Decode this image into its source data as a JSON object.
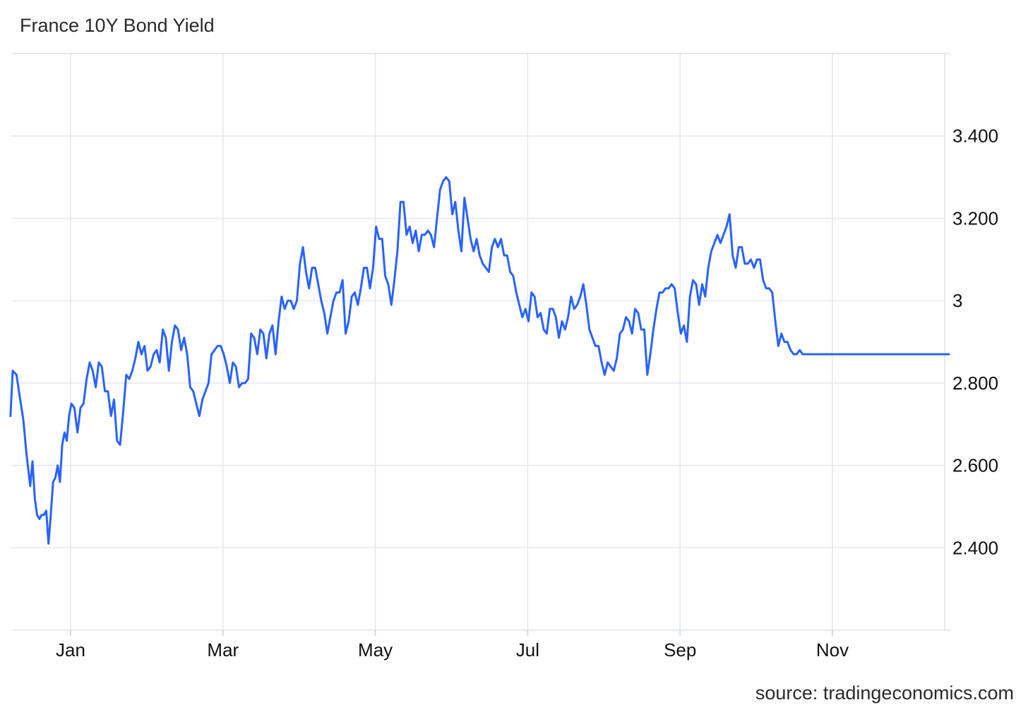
{
  "chart_data": {
    "type": "line",
    "title": "France 10Y Bond Yield",
    "source": "source: tradingeconomics.com",
    "xlabel": "",
    "ylabel": "",
    "ylim": [
      2.2,
      3.6
    ],
    "y_ticks": [
      {
        "value": 2.4,
        "label": "2.400"
      },
      {
        "value": 2.6,
        "label": "2.600"
      },
      {
        "value": 2.8,
        "label": "2.800"
      },
      {
        "value": 3.0,
        "label": "3"
      },
      {
        "value": 3.2,
        "label": "3.200"
      },
      {
        "value": 3.4,
        "label": "3.400"
      }
    ],
    "x_ticks": [
      {
        "label": "Jan",
        "pos": 1
      },
      {
        "label": "Mar",
        "pos": 3
      },
      {
        "label": "May",
        "pos": 5
      },
      {
        "label": "Jul",
        "pos": 7
      },
      {
        "label": "Sep",
        "pos": 9
      },
      {
        "label": "Nov",
        "pos": 11
      }
    ],
    "grid": true,
    "line_color": "#2962ff",
    "series": [
      {
        "x": [
          0.21,
          0.24,
          0.29,
          0.33,
          0.38,
          0.42,
          0.47,
          0.5,
          0.53,
          0.56,
          0.59,
          0.62,
          0.65,
          0.68,
          0.71,
          0.74,
          0.77,
          0.8,
          0.83,
          0.86,
          0.89,
          0.92,
          0.95,
          0.98,
          1.01,
          1.05,
          1.09,
          1.13,
          1.17,
          1.21,
          1.25,
          1.29,
          1.33,
          1.37,
          1.41,
          1.45,
          1.49,
          1.53,
          1.57,
          1.61,
          1.65,
          1.69,
          1.73,
          1.77,
          1.81,
          1.85,
          1.89,
          1.93,
          1.97,
          2.01,
          2.05,
          2.09,
          2.13,
          2.17,
          2.21,
          2.25,
          2.29,
          2.33,
          2.37,
          2.41,
          2.45,
          2.49,
          2.53,
          2.57,
          2.61,
          2.65,
          2.69,
          2.73,
          2.77,
          2.81,
          2.85,
          2.89,
          2.93,
          2.97,
          3.01,
          3.05,
          3.09,
          3.13,
          3.17,
          3.21,
          3.25,
          3.29,
          3.33,
          3.37,
          3.41,
          3.45,
          3.49,
          3.53,
          3.57,
          3.61,
          3.65,
          3.69,
          3.73,
          3.77,
          3.81,
          3.85,
          3.89,
          3.93,
          3.97,
          4.01,
          4.05,
          4.09,
          4.13,
          4.17,
          4.21,
          4.25,
          4.29,
          4.33,
          4.37,
          4.41,
          4.45,
          4.49,
          4.53,
          4.57,
          4.61,
          4.65,
          4.69,
          4.73,
          4.77,
          4.81,
          4.85,
          4.89,
          4.93,
          4.97,
          5.01,
          5.05,
          5.09,
          5.13,
          5.17,
          5.21,
          5.25,
          5.29,
          5.33,
          5.37,
          5.41,
          5.45,
          5.49,
          5.53,
          5.57,
          5.61,
          5.65,
          5.69,
          5.73,
          5.77,
          5.81,
          5.85,
          5.89,
          5.93,
          5.97,
          6.01,
          6.05,
          6.09,
          6.13,
          6.17,
          6.21,
          6.25,
          6.29,
          6.33,
          6.37,
          6.41,
          6.45,
          6.49,
          6.53,
          6.57,
          6.61,
          6.65,
          6.69,
          6.73,
          6.77,
          6.81,
          6.85,
          6.89,
          6.93,
          6.97,
          7.01,
          7.05,
          7.09,
          7.13,
          7.17,
          7.21,
          7.25,
          7.29,
          7.33,
          7.37,
          7.41,
          7.45,
          7.49,
          7.53,
          7.57,
          7.61,
          7.65,
          7.69,
          7.73,
          7.77,
          7.81,
          7.85,
          7.89,
          7.93,
          7.97,
          8.01,
          8.05,
          8.09,
          8.13,
          8.17,
          8.21,
          8.25,
          8.29,
          8.33,
          8.37,
          8.41,
          8.45,
          8.49,
          8.53,
          8.57,
          8.61,
          8.65,
          8.69,
          8.73,
          8.77,
          8.81,
          8.85,
          8.89,
          8.93,
          8.97,
          9.01,
          9.05,
          9.09,
          9.13,
          9.17,
          9.21,
          9.25,
          9.29,
          9.33,
          9.37,
          9.41,
          9.45,
          9.49,
          9.53,
          9.57,
          9.61,
          9.65,
          9.69,
          9.73,
          9.77,
          9.81,
          9.85,
          9.89,
          9.93,
          9.97,
          10.01,
          10.05,
          10.09,
          10.13,
          10.17,
          10.21,
          10.25,
          10.29,
          10.33,
          10.37,
          10.41,
          10.45,
          10.49,
          10.53,
          10.57,
          10.61,
          10.65,
          10.69,
          10.73,
          10.77,
          10.81,
          10.85,
          10.89,
          10.93,
          10.97,
          11.01,
          11.05,
          11.09,
          11.13,
          11.17,
          11.21,
          11.25,
          11.29,
          11.33,
          11.37,
          11.41,
          11.45,
          11.49,
          11.53,
          11.57,
          11.61,
          11.65,
          11.69,
          11.73,
          11.77,
          11.81,
          11.85,
          11.89,
          11.93,
          11.97,
          12.01,
          12.05,
          12.09,
          12.13,
          12.17,
          12.21,
          12.25,
          12.29,
          12.33,
          12.37,
          12.41,
          12.45,
          12.49,
          12.53,
          12.57,
          12.61,
          12.65,
          12.69,
          12.73,
          12.77,
          12.81,
          12.85,
          12.89,
          12.93,
          12.97,
          13.01,
          13.05,
          13.09,
          13.13,
          13.17,
          13.21,
          13.25
        ],
        "y": [
          2.72,
          2.83,
          2.82,
          2.77,
          2.71,
          2.63,
          2.55,
          2.61,
          2.52,
          2.48,
          2.47,
          2.48,
          2.48,
          2.49,
          2.41,
          2.48,
          2.56,
          2.57,
          2.6,
          2.56,
          2.65,
          2.68,
          2.66,
          2.72,
          2.75,
          2.74,
          2.68,
          2.74,
          2.75,
          2.81,
          2.85,
          2.83,
          2.79,
          2.85,
          2.84,
          2.78,
          2.78,
          2.72,
          2.76,
          2.66,
          2.65,
          2.73,
          2.82,
          2.81,
          2.83,
          2.86,
          2.9,
          2.87,
          2.89,
          2.83,
          2.84,
          2.87,
          2.88,
          2.85,
          2.93,
          2.91,
          2.83,
          2.9,
          2.94,
          2.93,
          2.88,
          2.91,
          2.87,
          2.79,
          2.78,
          2.75,
          2.72,
          2.76,
          2.78,
          2.8,
          2.87,
          2.88,
          2.89,
          2.89,
          2.87,
          2.84,
          2.8,
          2.85,
          2.84,
          2.79,
          2.8,
          2.8,
          2.81,
          2.92,
          2.91,
          2.87,
          2.93,
          2.92,
          2.86,
          2.92,
          2.94,
          2.87,
          2.95,
          3.01,
          2.98,
          3.0,
          3.0,
          2.98,
          3.0,
          3.09,
          3.13,
          3.07,
          3.03,
          3.08,
          3.08,
          3.04,
          3.0,
          2.97,
          2.92,
          2.96,
          3.0,
          3.02,
          3.02,
          3.05,
          2.92,
          2.95,
          3.01,
          3.02,
          2.99,
          3.03,
          3.08,
          3.08,
          3.03,
          3.08,
          3.18,
          3.15,
          3.15,
          3.06,
          3.04,
          2.99,
          3.05,
          3.12,
          3.24,
          3.24,
          3.16,
          3.18,
          3.14,
          3.17,
          3.12,
          3.16,
          3.16,
          3.17,
          3.16,
          3.13,
          3.2,
          3.27,
          3.29,
          3.3,
          3.29,
          3.21,
          3.24,
          3.17,
          3.12,
          3.25,
          3.2,
          3.15,
          3.12,
          3.15,
          3.11,
          3.09,
          3.08,
          3.07,
          3.13,
          3.15,
          3.13,
          3.15,
          3.11,
          3.11,
          3.07,
          3.06,
          3.02,
          2.99,
          2.96,
          2.98,
          2.95,
          3.02,
          3.01,
          2.96,
          2.97,
          2.93,
          2.92,
          2.98,
          2.98,
          2.96,
          2.91,
          2.95,
          2.93,
          2.96,
          3.01,
          2.98,
          2.99,
          3.01,
          3.04,
          2.99,
          2.93,
          2.91,
          2.89,
          2.89,
          2.85,
          2.82,
          2.85,
          2.84,
          2.83,
          2.86,
          2.92,
          2.93,
          2.96,
          2.95,
          2.92,
          2.98,
          2.97,
          2.93,
          2.93,
          2.82,
          2.87,
          2.93,
          2.98,
          3.02,
          3.02,
          3.03,
          3.03,
          3.04,
          3.03,
          2.97,
          2.92,
          2.94,
          2.9,
          3.01,
          3.05,
          3.04,
          2.99,
          3.04,
          3.01,
          3.08,
          3.12,
          3.14,
          3.16,
          3.14,
          3.16,
          3.18,
          3.21,
          3.11,
          3.08,
          3.13,
          3.13,
          3.09,
          3.09,
          3.1,
          3.08,
          3.1,
          3.1,
          3.05,
          3.03,
          3.03,
          3.02,
          2.95,
          2.89,
          2.92,
          2.9,
          2.9,
          2.88,
          2.87,
          2.87,
          2.88,
          2.87,
          2.87,
          2.87,
          2.87,
          2.87,
          2.87,
          2.87,
          2.87,
          2.87,
          2.87,
          2.87,
          2.87,
          2.87,
          2.87,
          2.87,
          2.87,
          2.87,
          2.87,
          2.87,
          2.87,
          2.87,
          2.87,
          2.87,
          2.87,
          2.87,
          2.87,
          2.87,
          2.87,
          2.87,
          2.87,
          2.87,
          2.87,
          2.87,
          2.87,
          2.87,
          2.87,
          2.87,
          2.87,
          2.87,
          2.87,
          2.87,
          2.87,
          2.87,
          2.87,
          2.87,
          2.87,
          2.87,
          2.87,
          2.87,
          2.87,
          2.87,
          2.87,
          2.87,
          2.87,
          2.87,
          2.87,
          2.87,
          2.87,
          2.87,
          2.87,
          2.87,
          2.87,
          2.87,
          2.87,
          2.87,
          2.87,
          2.87
        ]
      }
    ]
  }
}
